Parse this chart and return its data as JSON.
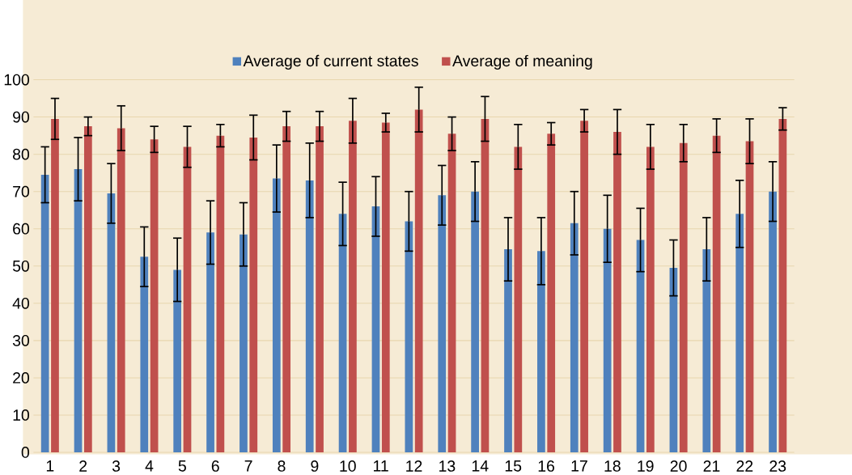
{
  "chart_data": {
    "type": "bar",
    "categories": [
      "1",
      "2",
      "3",
      "4",
      "5",
      "6",
      "7",
      "8",
      "9",
      "10",
      "11",
      "12",
      "13",
      "14",
      "15",
      "16",
      "17",
      "18",
      "19",
      "20",
      "21",
      "22",
      "23"
    ],
    "series": [
      {
        "name": "Average of current states",
        "color": "#4f81bd",
        "values": [
          74.5,
          76,
          69.5,
          52.5,
          49,
          59,
          58.5,
          73.5,
          73,
          64,
          66,
          62,
          69,
          70,
          54.5,
          54,
          61.5,
          60,
          57,
          49.5,
          54.5,
          64,
          70
        ],
        "errors": [
          7.5,
          8.5,
          8,
          8,
          8.5,
          8.5,
          8.5,
          9,
          10,
          8.5,
          8,
          8,
          8,
          8,
          8.5,
          9,
          8.5,
          9,
          8.5,
          7.5,
          8.5,
          9,
          8
        ]
      },
      {
        "name": "Average of meaning",
        "color": "#c0504d",
        "values": [
          89.5,
          87.5,
          87,
          84,
          82,
          85,
          84.5,
          87.5,
          87.5,
          89,
          88.5,
          92,
          85.5,
          89.5,
          82,
          85.5,
          89,
          86,
          82,
          83,
          85,
          83.5,
          89.5
        ],
        "errors": [
          5.5,
          2.5,
          6,
          3.5,
          5.5,
          3,
          6,
          4,
          4,
          6,
          2.5,
          6,
          4.5,
          6,
          6,
          3,
          3,
          6,
          6,
          5,
          4.5,
          6,
          3
        ]
      }
    ],
    "ylim": [
      0,
      100
    ],
    "yticks": [
      0,
      10,
      20,
      30,
      40,
      50,
      60,
      70,
      80,
      90,
      100
    ],
    "grid": "y",
    "legend": "top"
  }
}
